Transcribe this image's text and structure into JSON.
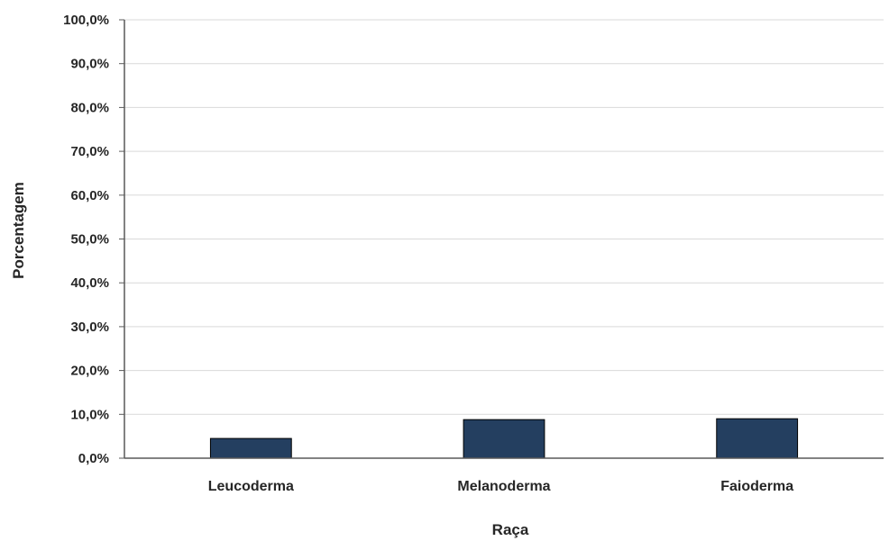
{
  "chart_data": {
    "type": "bar",
    "categories": [
      "Leucoderma",
      "Melanoderma",
      "Faioderma"
    ],
    "values": [
      4.5,
      8.8,
      9.0
    ],
    "xlabel": "Raça",
    "ylabel": "Porcentagem",
    "ylim": [
      0,
      100
    ],
    "yticks": [
      "0,0%",
      "10,0%",
      "20,0%",
      "30,0%",
      "40,0%",
      "50,0%",
      "60,0%",
      "70,0%",
      "80,0%",
      "90,0%",
      "100,0%"
    ],
    "grid": true,
    "legend": "none",
    "bar_color": "#243F60",
    "grid_color": "#D9D9D9",
    "axis_color": "#595959"
  }
}
